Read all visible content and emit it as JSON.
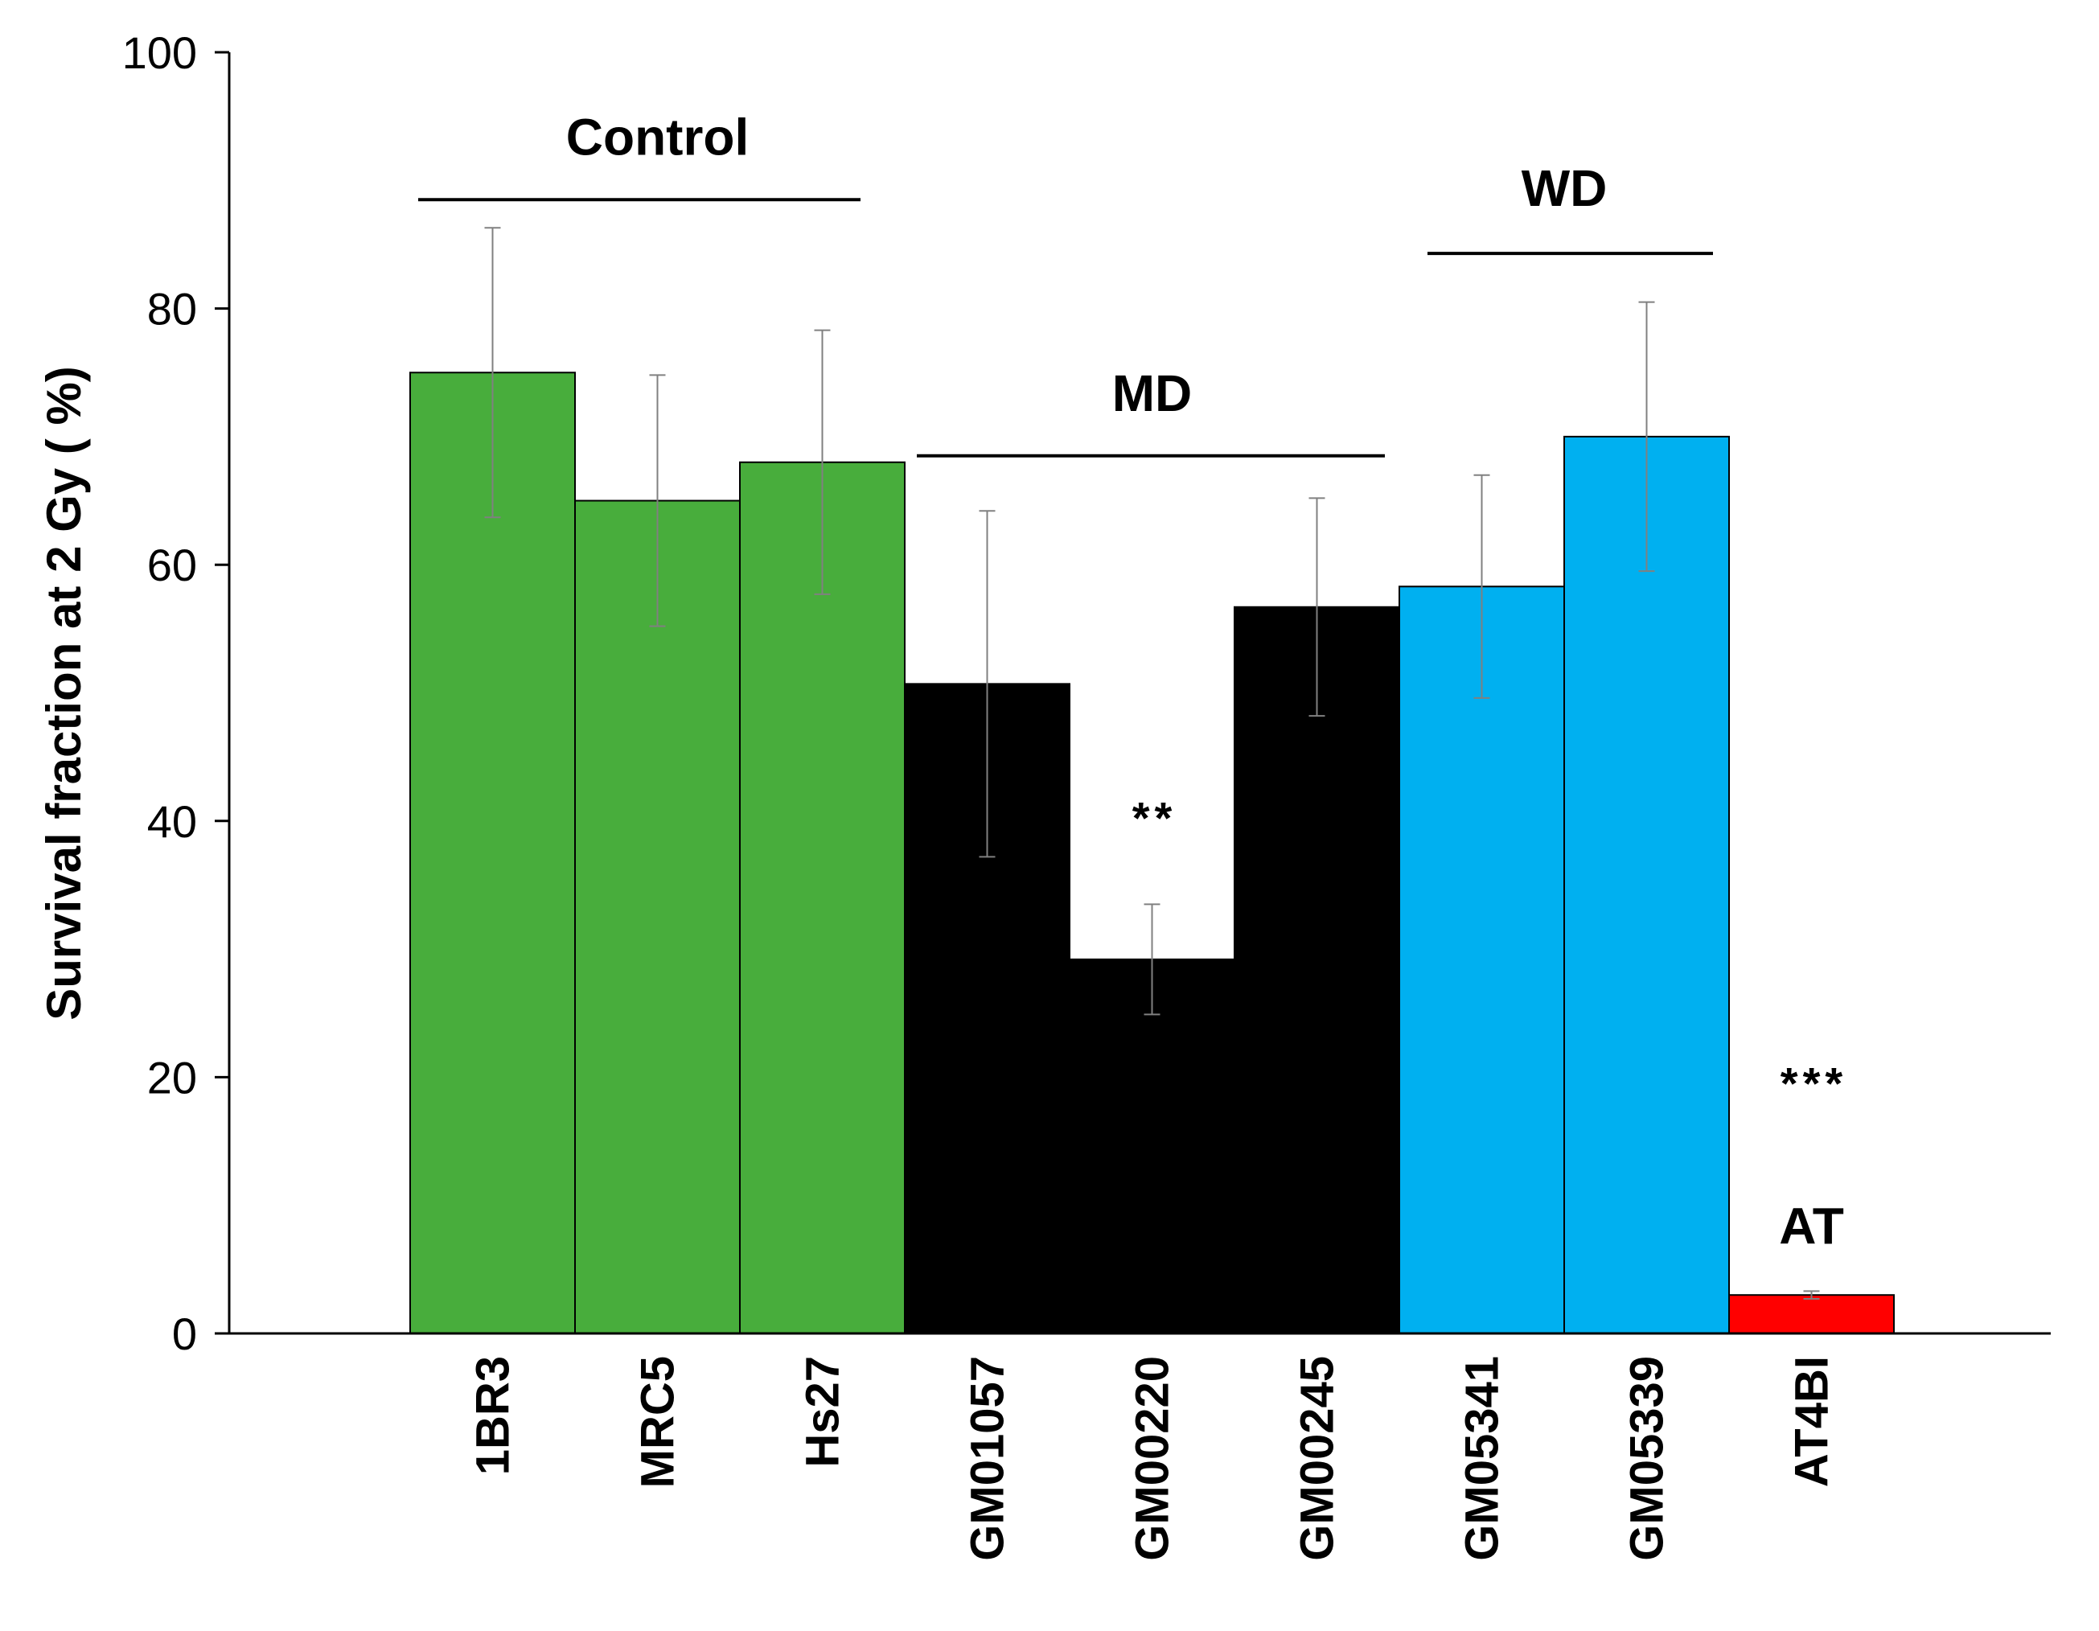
{
  "chart_data": {
    "type": "bar",
    "title": "",
    "xlabel": "",
    "ylabel": "Survival fraction at 2 Gy ( %)",
    "ylim": [
      0,
      100
    ],
    "yticks": [
      0,
      20,
      40,
      60,
      80,
      100
    ],
    "grid": false,
    "categories": [
      "1BR3",
      "MRC5",
      "Hs27",
      "GM01057",
      "GM00220",
      "GM00245",
      "GM05341",
      "GM05339",
      "AT4BI"
    ],
    "values": [
      75,
      65,
      68,
      50.7,
      29.2,
      56.7,
      58.3,
      70,
      3
    ],
    "errors": [
      11.3,
      9.8,
      10.3,
      13.5,
      4.3,
      8.5,
      8.7,
      10.5,
      0.3
    ],
    "bar_colors": [
      "#48ad3c",
      "#48ad3c",
      "#48ad3c",
      "#000000",
      "#000000",
      "#000000",
      "#00b0f0",
      "#00b0f0",
      "#ff0000"
    ],
    "groups": [
      {
        "label": "Control",
        "first": 0,
        "last": 2,
        "line_y": 88.5,
        "label_y": 92
      },
      {
        "label": "MD",
        "first": 3,
        "last": 5,
        "line_y": 68.5,
        "label_y": 72
      },
      {
        "label": "WD",
        "first": 6,
        "last": 7,
        "line_y": 84.3,
        "label_y": 88
      },
      {
        "label": "AT",
        "first": 8,
        "last": 8,
        "line_y": null,
        "label_y": 7
      }
    ],
    "significance": [
      {
        "index": 4,
        "label": "**",
        "y": 39
      },
      {
        "index": 8,
        "label": "***",
        "y": 18.3
      }
    ]
  }
}
